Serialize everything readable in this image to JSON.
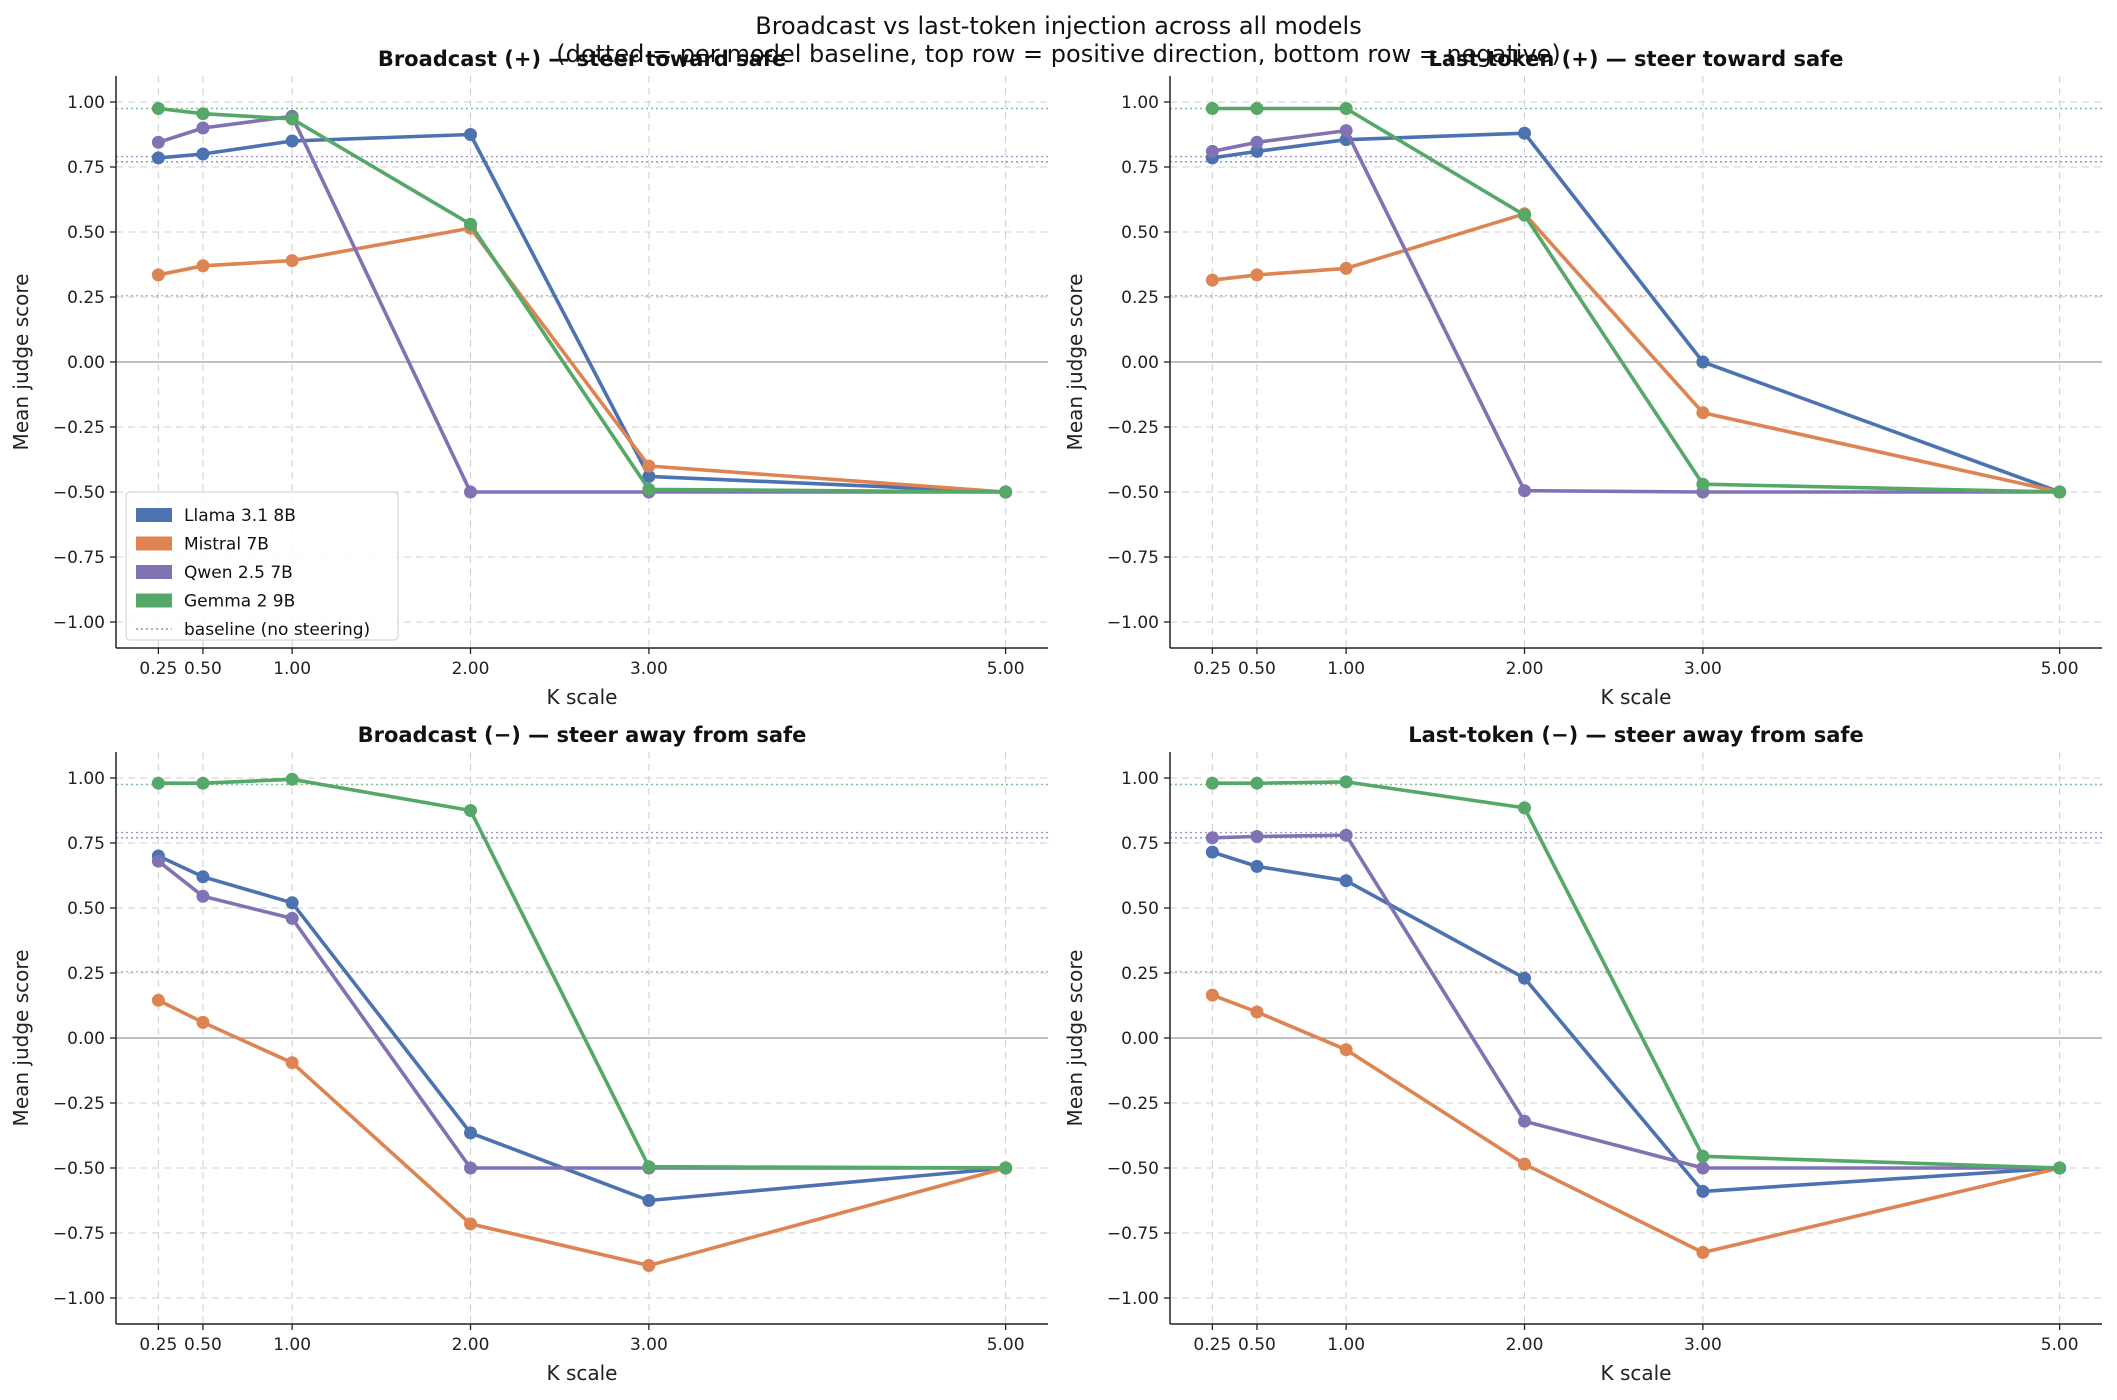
{
  "figure": {
    "title": "Broadcast vs last-token injection across all models",
    "subtitle": "(dotted = per-model baseline, top row = positive direction, bottom row = negative)"
  },
  "colors": {
    "Llama 3.1 8B": "#4c72b0",
    "Mistral 7B": "#dd8452",
    "Qwen 2.5 7B": "#8172b3",
    "Gemma 2 9B": "#55a868"
  },
  "legend": {
    "placement": "lower-left of first panel",
    "entries": [
      "Llama 3.1 8B",
      "Mistral 7B",
      "Qwen 2.5 7B",
      "Gemma 2 9B",
      "baseline (no steering)"
    ]
  },
  "chart_data": [
    {
      "type": "line",
      "title": "Broadcast (+) — steer toward safe",
      "xlabel": "K scale",
      "ylabel": "Mean judge score",
      "x": [
        0.25,
        0.5,
        1.0,
        2.0,
        3.0,
        5.0
      ],
      "xticks": [
        "0.25",
        "0.50",
        "1.00",
        "2.00",
        "3.00",
        "5.00"
      ],
      "yticks": [
        "1.00",
        "0.75",
        "0.50",
        "0.25",
        "0.00",
        "−0.25",
        "−0.50",
        "−0.75",
        "−1.00"
      ],
      "ylim": [
        -1.1,
        1.1
      ],
      "grid": true,
      "baselines": {
        "Llama 3.1 8B": 0.77,
        "Mistral 7B": 0.255,
        "Qwen 2.5 7B": 0.79,
        "Gemma 2 9B": 0.975
      },
      "series": [
        {
          "name": "Llama 3.1 8B",
          "values": [
            0.785,
            0.8,
            0.85,
            0.875,
            -0.44,
            -0.5
          ]
        },
        {
          "name": "Mistral 7B",
          "values": [
            0.335,
            0.37,
            0.39,
            0.515,
            -0.4,
            -0.5
          ]
        },
        {
          "name": "Qwen 2.5 7B",
          "values": [
            0.845,
            0.9,
            0.945,
            -0.5,
            -0.5,
            -0.5
          ]
        },
        {
          "name": "Gemma 2 9B",
          "values": [
            0.975,
            0.955,
            0.935,
            0.53,
            -0.49,
            -0.5
          ]
        }
      ]
    },
    {
      "type": "line",
      "title": "Last-token (+) — steer toward safe",
      "xlabel": "K scale",
      "ylabel": "Mean judge score",
      "x": [
        0.25,
        0.5,
        1.0,
        2.0,
        3.0,
        5.0
      ],
      "xticks": [
        "0.25",
        "0.50",
        "1.00",
        "2.00",
        "3.00",
        "5.00"
      ],
      "yticks": [
        "1.00",
        "0.75",
        "0.50",
        "0.25",
        "0.00",
        "−0.25",
        "−0.50",
        "−0.75",
        "−1.00"
      ],
      "ylim": [
        -1.1,
        1.1
      ],
      "grid": true,
      "baselines": {
        "Llama 3.1 8B": 0.77,
        "Mistral 7B": 0.255,
        "Qwen 2.5 7B": 0.79,
        "Gemma 2 9B": 0.975
      },
      "series": [
        {
          "name": "Llama 3.1 8B",
          "values": [
            0.785,
            0.81,
            0.855,
            0.88,
            0.0,
            -0.5
          ]
        },
        {
          "name": "Mistral 7B",
          "values": [
            0.315,
            0.335,
            0.36,
            0.57,
            -0.195,
            -0.5
          ]
        },
        {
          "name": "Qwen 2.5 7B",
          "values": [
            0.81,
            0.845,
            0.89,
            -0.495,
            -0.5,
            -0.5
          ]
        },
        {
          "name": "Gemma 2 9B",
          "values": [
            0.975,
            0.975,
            0.975,
            0.565,
            -0.47,
            -0.5
          ]
        }
      ]
    },
    {
      "type": "line",
      "title": "Broadcast (−) — steer away from safe",
      "xlabel": "K scale",
      "ylabel": "Mean judge score",
      "x": [
        0.25,
        0.5,
        1.0,
        2.0,
        3.0,
        5.0
      ],
      "xticks": [
        "0.25",
        "0.50",
        "1.00",
        "2.00",
        "3.00",
        "5.00"
      ],
      "yticks": [
        "1.00",
        "0.75",
        "0.50",
        "0.25",
        "0.00",
        "−0.25",
        "−0.50",
        "−0.75",
        "−1.00"
      ],
      "ylim": [
        -1.1,
        1.1
      ],
      "grid": true,
      "baselines": {
        "Llama 3.1 8B": 0.77,
        "Mistral 7B": 0.255,
        "Qwen 2.5 7B": 0.79,
        "Gemma 2 9B": 0.975
      },
      "series": [
        {
          "name": "Llama 3.1 8B",
          "values": [
            0.7,
            0.62,
            0.52,
            -0.365,
            -0.625,
            -0.5
          ]
        },
        {
          "name": "Mistral 7B",
          "values": [
            0.145,
            0.06,
            -0.095,
            -0.715,
            -0.875,
            -0.5
          ]
        },
        {
          "name": "Qwen 2.5 7B",
          "values": [
            0.68,
            0.545,
            0.46,
            -0.5,
            -0.5,
            -0.5
          ]
        },
        {
          "name": "Gemma 2 9B",
          "values": [
            0.98,
            0.98,
            0.995,
            0.875,
            -0.495,
            -0.5
          ]
        }
      ]
    },
    {
      "type": "line",
      "title": "Last-token (−) — steer away from safe",
      "xlabel": "K scale",
      "ylabel": "Mean judge score",
      "x": [
        0.25,
        0.5,
        1.0,
        2.0,
        3.0,
        5.0
      ],
      "xticks": [
        "0.25",
        "0.50",
        "1.00",
        "2.00",
        "3.00",
        "5.00"
      ],
      "yticks": [
        "1.00",
        "0.75",
        "0.50",
        "0.25",
        "0.00",
        "−0.25",
        "−0.50",
        "−0.75",
        "−1.00"
      ],
      "ylim": [
        -1.1,
        1.1
      ],
      "grid": true,
      "baselines": {
        "Llama 3.1 8B": 0.77,
        "Mistral 7B": 0.255,
        "Qwen 2.5 7B": 0.79,
        "Gemma 2 9B": 0.975
      },
      "series": [
        {
          "name": "Llama 3.1 8B",
          "values": [
            0.715,
            0.66,
            0.605,
            0.23,
            -0.59,
            -0.5
          ]
        },
        {
          "name": "Mistral 7B",
          "values": [
            0.165,
            0.1,
            -0.045,
            -0.485,
            -0.825,
            -0.5
          ]
        },
        {
          "name": "Qwen 2.5 7B",
          "values": [
            0.77,
            0.775,
            0.78,
            -0.32,
            -0.5,
            -0.5
          ]
        },
        {
          "name": "Gemma 2 9B",
          "values": [
            0.98,
            0.98,
            0.985,
            0.885,
            -0.455,
            -0.5
          ]
        }
      ]
    }
  ]
}
